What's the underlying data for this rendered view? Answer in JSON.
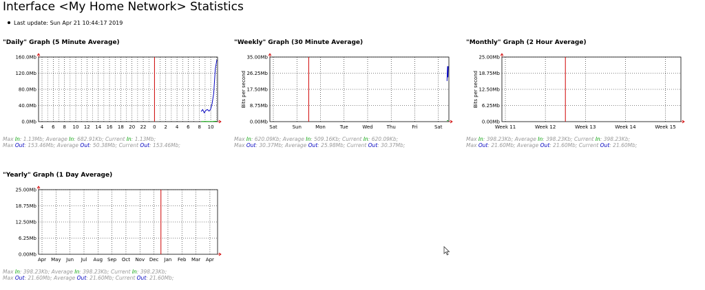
{
  "page": {
    "title": "Interface <My Home Network> Statistics",
    "last_update": "Last update: Sun Apr 21 10:44:17 2019"
  },
  "colors": {
    "in": "#00a000",
    "out": "#0000c0",
    "now": "#d00000",
    "grid": "#000000"
  },
  "chart_data": [
    {
      "id": "daily",
      "type": "line",
      "title": "\"Daily\" Graph (5 Minute Average)",
      "xlabel": "",
      "ylabel": "",
      "yticks": [
        "0.0Mb",
        "40.0Mb",
        "80.0Mb",
        "120.0Mb",
        "160.0Mb"
      ],
      "ylim": [
        0,
        160
      ],
      "xticks": [
        "4",
        "6",
        "8",
        "10",
        "12",
        "14",
        "16",
        "18",
        "20",
        "22",
        "0",
        "2",
        "4",
        "6",
        "8",
        "10"
      ],
      "x_minor_per_major": 2,
      "now_index": 10,
      "series": [
        {
          "key": "in",
          "x": [
            0.0,
            0.05,
            0.1,
            0.15,
            0.2
          ],
          "values": [
            0.2,
            0.3,
            0.2,
            0.4,
            1.1
          ]
        },
        {
          "key": "out",
          "x": [
            0.0,
            0.02,
            0.04,
            0.06,
            0.08,
            0.1,
            0.12,
            0.14,
            0.16,
            0.18,
            0.2
          ],
          "values": [
            25,
            30,
            22,
            28,
            30,
            26,
            30,
            45,
            70,
            130,
            153
          ]
        }
      ],
      "series_anchor": "end",
      "series_span": 1.4,
      "stats": [
        {
          "max": "1.13Mb",
          "avg": "682.91Kb",
          "cur": "1.13Mb"
        },
        {
          "max": "153.46Mb",
          "avg": "50.38Mb",
          "cur": "153.46Mb"
        }
      ]
    },
    {
      "id": "weekly",
      "type": "line",
      "title": "\"Weekly\" Graph (30 Minute Average)",
      "xlabel": "",
      "ylabel": "Bits per second",
      "yticks": [
        "0.00Mb",
        "8.75Mb",
        "17.50Mb",
        "26.25Mb",
        "35.00Mb"
      ],
      "ylim": [
        0,
        35
      ],
      "xticks": [
        "Sat",
        "Sun",
        "Mon",
        "Tue",
        "Wed",
        "Thu",
        "Fri",
        "Sat"
      ],
      "x_minor_per_major": 1,
      "now_index": 1.5,
      "series": [
        {
          "key": "in",
          "x": [
            0,
            0.5,
            1
          ],
          "values": [
            0.6,
            0.5,
            0.6
          ]
        },
        {
          "key": "out",
          "x": [
            0,
            0.25,
            0.5,
            0.75,
            1
          ],
          "values": [
            22,
            27,
            30,
            24,
            30
          ]
        }
      ],
      "series_anchor": "end",
      "series_span": 0.05,
      "stats": [
        {
          "max": "620.09Kb",
          "avg": "509.16Kb",
          "cur": "620.09Kb"
        },
        {
          "max": "30.37Mb",
          "avg": "25.98Mb",
          "cur": "30.37Mb"
        }
      ]
    },
    {
      "id": "monthly",
      "type": "line",
      "title": "\"Monthly\" Graph (2 Hour Average)",
      "xlabel": "",
      "ylabel": "Bits per second",
      "yticks": [
        "0.00Mb",
        "6.25Mb",
        "12.50Mb",
        "18.75Mb",
        "25.00Mb"
      ],
      "ylim": [
        0,
        25
      ],
      "xticks": [
        "Week 11",
        "Week 12",
        "Week 13",
        "Week 14",
        "Week 15"
      ],
      "x_minor_per_major": 1,
      "now_index": 1.5,
      "series": [],
      "stats": [
        {
          "max": "398.23Kb",
          "avg": "398.23Kb",
          "cur": "398.23Kb"
        },
        {
          "max": "21.60Mb",
          "avg": "21.60Mb",
          "cur": "21.60Mb"
        }
      ]
    },
    {
      "id": "yearly",
      "type": "line",
      "title": "\"Yearly\" Graph (1 Day Average)",
      "xlabel": "",
      "ylabel": "",
      "yticks": [
        "0.00Mb",
        "6.25Mb",
        "12.50Mb",
        "18.75Mb",
        "25.00Mb"
      ],
      "ylim": [
        0,
        25
      ],
      "xticks": [
        "Apr",
        "May",
        "Jun",
        "Jul",
        "Aug",
        "Sep",
        "Oct",
        "Nov",
        "Dec",
        "Jan",
        "Feb",
        "Mar",
        "Apr"
      ],
      "x_minor_per_major": 1,
      "now_index": 8.5,
      "series": [],
      "stats": [
        {
          "max": "398.23Kb",
          "avg": "398.23Kb",
          "cur": "398.23Kb"
        },
        {
          "max": "21.60Mb",
          "avg": "21.60Mb",
          "cur": "21.60Mb"
        }
      ]
    }
  ],
  "labels": {
    "max": "Max ",
    "avg": "Average ",
    "cur": "Current ",
    "in": "In",
    "out": "Out",
    "sep": ": ",
    "comma": "; "
  }
}
